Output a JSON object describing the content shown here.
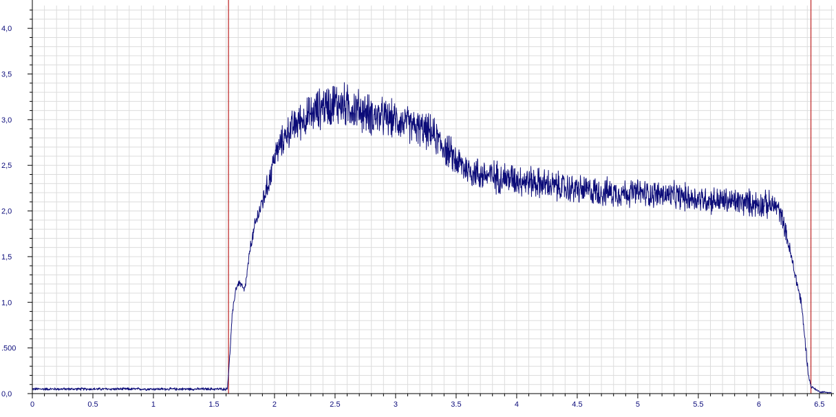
{
  "chart_data": {
    "type": "line",
    "title": "",
    "xlabel": "",
    "ylabel": "",
    "xlim": [
      0,
      6.62
    ],
    "ylim": [
      0,
      4.25
    ],
    "grid": true,
    "x_ticks": [
      {
        "v": 0,
        "label": "0"
      },
      {
        "v": 0.5,
        "label": "0.5"
      },
      {
        "v": 1,
        "label": "1"
      },
      {
        "v": 1.5,
        "label": "1.5"
      },
      {
        "v": 2,
        "label": "2"
      },
      {
        "v": 2.5,
        "label": "2.5"
      },
      {
        "v": 3,
        "label": "3"
      },
      {
        "v": 3.5,
        "label": "3.5"
      },
      {
        "v": 4,
        "label": "4"
      },
      {
        "v": 4.5,
        "label": "4.5"
      },
      {
        "v": 5,
        "label": "5"
      },
      {
        "v": 5.5,
        "label": "5.5"
      },
      {
        "v": 6,
        "label": "6"
      },
      {
        "v": 6.5,
        "label": "6.5"
      }
    ],
    "y_ticks": [
      {
        "v": 0,
        "label": "0,0"
      },
      {
        "v": 0.5,
        "label": ".500"
      },
      {
        "v": 1.0,
        "label": "1,0"
      },
      {
        "v": 1.5,
        "label": "1,5"
      },
      {
        "v": 2.0,
        "label": "2,0"
      },
      {
        "v": 2.5,
        "label": "2,5"
      },
      {
        "v": 3.0,
        "label": "3,0"
      },
      {
        "v": 3.5,
        "label": "3,5"
      },
      {
        "v": 4.0,
        "label": "4,0"
      }
    ],
    "markers": [
      {
        "x": 1.62,
        "color": "#c03030"
      },
      {
        "x": 6.43,
        "color": "#c03030"
      }
    ],
    "series": [
      {
        "color": "#0b0b78",
        "points": [
          [
            0.0,
            0.05
          ],
          [
            0.2,
            0.05
          ],
          [
            0.4,
            0.05
          ],
          [
            0.6,
            0.05
          ],
          [
            0.8,
            0.05
          ],
          [
            1.0,
            0.05
          ],
          [
            1.2,
            0.05
          ],
          [
            1.4,
            0.05
          ],
          [
            1.6,
            0.05
          ],
          [
            1.61,
            0.05
          ],
          [
            1.63,
            0.4
          ],
          [
            1.65,
            0.85
          ],
          [
            1.68,
            1.15
          ],
          [
            1.71,
            1.22
          ],
          [
            1.73,
            1.18
          ],
          [
            1.75,
            1.12
          ],
          [
            1.77,
            1.28
          ],
          [
            1.8,
            1.6
          ],
          [
            1.85,
            1.9
          ],
          [
            1.9,
            2.1
          ],
          [
            1.95,
            2.3
          ],
          [
            2.0,
            2.6
          ],
          [
            2.1,
            2.85
          ],
          [
            2.2,
            2.98
          ],
          [
            2.3,
            3.05
          ],
          [
            2.4,
            3.15
          ],
          [
            2.5,
            3.18
          ],
          [
            2.6,
            3.15
          ],
          [
            2.7,
            3.1
          ],
          [
            2.8,
            3.05
          ],
          [
            2.9,
            3.02
          ],
          [
            3.0,
            3.0
          ],
          [
            3.1,
            2.95
          ],
          [
            3.2,
            2.9
          ],
          [
            3.3,
            2.85
          ],
          [
            3.4,
            2.7
          ],
          [
            3.5,
            2.55
          ],
          [
            3.6,
            2.45
          ],
          [
            3.7,
            2.4
          ],
          [
            3.8,
            2.38
          ],
          [
            4.0,
            2.35
          ],
          [
            4.2,
            2.3
          ],
          [
            4.4,
            2.25
          ],
          [
            4.6,
            2.22
          ],
          [
            4.8,
            2.2
          ],
          [
            5.0,
            2.2
          ],
          [
            5.2,
            2.18
          ],
          [
            5.4,
            2.15
          ],
          [
            5.6,
            2.12
          ],
          [
            5.8,
            2.1
          ],
          [
            6.0,
            2.08
          ],
          [
            6.1,
            2.06
          ],
          [
            6.15,
            2.05
          ],
          [
            6.2,
            1.9
          ],
          [
            6.25,
            1.6
          ],
          [
            6.3,
            1.3
          ],
          [
            6.35,
            1.0
          ],
          [
            6.38,
            0.6
          ],
          [
            6.41,
            0.2
          ],
          [
            6.43,
            0.08
          ],
          [
            6.5,
            0.02
          ],
          [
            6.6,
            0.01
          ]
        ],
        "noise_amplitude": [
          [
            0.0,
            0.012
          ],
          [
            1.6,
            0.012
          ],
          [
            1.62,
            0.02
          ],
          [
            1.78,
            0.04
          ],
          [
            1.9,
            0.1
          ],
          [
            2.2,
            0.16
          ],
          [
            2.5,
            0.2
          ],
          [
            3.0,
            0.16
          ],
          [
            4.0,
            0.14
          ],
          [
            5.0,
            0.12
          ],
          [
            6.1,
            0.12
          ],
          [
            6.2,
            0.08
          ],
          [
            6.35,
            0.05
          ],
          [
            6.45,
            0.01
          ],
          [
            6.62,
            0.005
          ]
        ]
      }
    ]
  }
}
